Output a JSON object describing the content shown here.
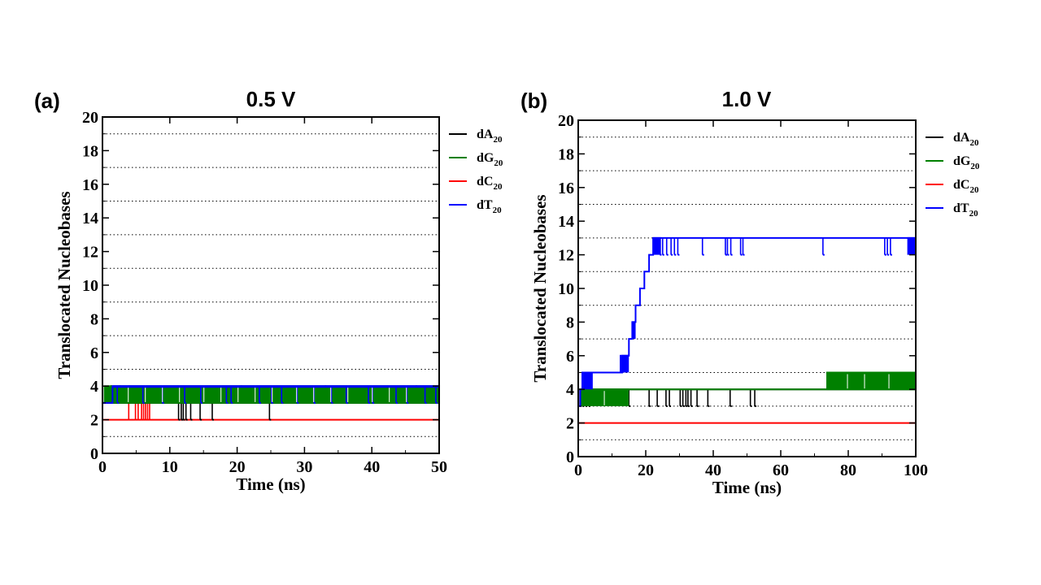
{
  "chart_data": [
    {
      "type": "line",
      "panel_label": "(a)",
      "title": "0.5 V",
      "xlabel": "Time (ns)",
      "ylabel": "Translocated Nucleobases",
      "xlim": [
        0,
        50
      ],
      "ylim": [
        0,
        20
      ],
      "xticks": [
        0,
        10,
        20,
        30,
        40,
        50
      ],
      "yticks": [
        0,
        2,
        4,
        6,
        8,
        10,
        12,
        14,
        16,
        18,
        20
      ],
      "grid": "dotted horizontal lines at odd integers",
      "legend_placement": "right, outside plot, top",
      "series": [
        {
          "name": "dA",
          "name_sub": "20",
          "color": "#000000",
          "base": 3,
          "base_until": 50,
          "steps": [],
          "spikes": [
            {
              "x": 1.2,
              "y": 4
            },
            {
              "x": 2.5,
              "y": 4
            },
            {
              "x": 3.8,
              "y": 4
            },
            {
              "x": 11.3,
              "y": 2
            },
            {
              "x": 11.7,
              "y": 2
            },
            {
              "x": 12.0,
              "y": 2
            },
            {
              "x": 12.4,
              "y": 2
            },
            {
              "x": 13.1,
              "y": 2
            },
            {
              "x": 14.5,
              "y": 2
            },
            {
              "x": 16.3,
              "y": 2
            },
            {
              "x": 20.5,
              "y": 4
            },
            {
              "x": 24.8,
              "y": 2
            },
            {
              "x": 33.0,
              "y": 4
            },
            {
              "x": 46.5,
              "y": 4
            }
          ],
          "bands": []
        },
        {
          "name": "dG",
          "name_sub": "20",
          "color": "#008000",
          "base": 3,
          "base_until": 50,
          "steps": [],
          "spikes": [],
          "bands": [
            {
              "x0": 0.2,
              "x1": 50,
              "y0": 3,
              "y1": 4
            }
          ]
        },
        {
          "name": "dC",
          "name_sub": "20",
          "color": "#ff0000",
          "base": 2,
          "base_until": 50,
          "steps": [],
          "spikes": [
            {
              "x": 3.9,
              "y": 3
            },
            {
              "x": 4.9,
              "y": 3
            },
            {
              "x": 5.3,
              "y": 3
            },
            {
              "x": 5.8,
              "y": 3
            },
            {
              "x": 6.1,
              "y": 3
            },
            {
              "x": 6.4,
              "y": 3
            },
            {
              "x": 6.7,
              "y": 3
            },
            {
              "x": 7.0,
              "y": 3
            }
          ],
          "bands": []
        },
        {
          "name": "dT",
          "name_sub": "20",
          "color": "#0000ff",
          "base": 3,
          "base_until": 50,
          "steps": [
            [
              1.5,
              4
            ]
          ],
          "spikes": [
            {
              "x": 2.2,
              "y": 3
            },
            {
              "x": 6.0,
              "y": 3
            },
            {
              "x": 8.9,
              "y": 3
            },
            {
              "x": 12.2,
              "y": 3
            },
            {
              "x": 14.6,
              "y": 3
            },
            {
              "x": 18.4,
              "y": 3
            },
            {
              "x": 19.1,
              "y": 3
            },
            {
              "x": 23.3,
              "y": 3
            },
            {
              "x": 25.1,
              "y": 3
            },
            {
              "x": 26.6,
              "y": 3
            },
            {
              "x": 28.9,
              "y": 3
            },
            {
              "x": 31.4,
              "y": 3
            },
            {
              "x": 34.0,
              "y": 3
            },
            {
              "x": 36.2,
              "y": 3
            },
            {
              "x": 39.5,
              "y": 3
            },
            {
              "x": 40.1,
              "y": 3
            },
            {
              "x": 43.6,
              "y": 3
            },
            {
              "x": 45.2,
              "y": 3
            },
            {
              "x": 47.9,
              "y": 3
            },
            {
              "x": 49.5,
              "y": 3
            }
          ],
          "bands": [
            {
              "x0": 1.5,
              "x1": 50,
              "y0": 4,
              "y1": 4
            }
          ]
        }
      ]
    },
    {
      "type": "line",
      "panel_label": "(b)",
      "title": "1.0 V",
      "xlabel": "Time (ns)",
      "ylabel": "Translocated Nucleobases",
      "xlim": [
        0,
        100
      ],
      "ylim": [
        0,
        20
      ],
      "xticks": [
        0,
        20,
        40,
        60,
        80,
        100
      ],
      "yticks": [
        0,
        2,
        4,
        6,
        8,
        10,
        12,
        14,
        16,
        18,
        20
      ],
      "grid": "dotted horizontal lines at odd integers",
      "legend_placement": "right, outside plot, top",
      "series": [
        {
          "name": "dA",
          "name_sub": "20",
          "color": "#000000",
          "base": 4,
          "base_until": 100,
          "steps": [],
          "spikes": [
            {
              "x": 0.5,
              "y": 3
            },
            {
              "x": 1.3,
              "y": 3
            },
            {
              "x": 2.2,
              "y": 3
            },
            {
              "x": 3.1,
              "y": 3
            },
            {
              "x": 15.0,
              "y": 3
            },
            {
              "x": 21.0,
              "y": 3
            },
            {
              "x": 23.4,
              "y": 3
            },
            {
              "x": 26.0,
              "y": 3
            },
            {
              "x": 27.0,
              "y": 3
            },
            {
              "x": 30.2,
              "y": 3
            },
            {
              "x": 31.0,
              "y": 3
            },
            {
              "x": 31.9,
              "y": 3
            },
            {
              "x": 32.5,
              "y": 3
            },
            {
              "x": 33.4,
              "y": 3
            },
            {
              "x": 35.2,
              "y": 3
            },
            {
              "x": 38.4,
              "y": 3
            },
            {
              "x": 45.0,
              "y": 3
            },
            {
              "x": 51.0,
              "y": 3
            },
            {
              "x": 52.3,
              "y": 3
            }
          ],
          "bands": []
        },
        {
          "name": "dG",
          "name_sub": "20",
          "color": "#008000",
          "base": 4,
          "base_until": 100,
          "steps": [],
          "spikes": [],
          "bands": [
            {
              "x0": 0.5,
              "x1": 15.0,
              "y0": 3,
              "y1": 4
            },
            {
              "x0": 73.5,
              "x1": 100,
              "y0": 4,
              "y1": 5
            }
          ]
        },
        {
          "name": "dC",
          "name_sub": "20",
          "color": "#ff0000",
          "base": 2,
          "base_until": 100,
          "steps": [],
          "spikes": [],
          "bands": []
        },
        {
          "name": "dT",
          "name_sub": "20",
          "color": "#0000ff",
          "base": 3,
          "base_until": 100,
          "steps": [
            [
              0.6,
              4
            ],
            [
              1.2,
              5
            ],
            [
              13,
              6
            ],
            [
              15,
              7
            ],
            [
              16,
              8
            ],
            [
              17,
              9
            ],
            [
              18.3,
              10
            ],
            [
              19.6,
              11
            ],
            [
              21,
              12
            ],
            [
              22.2,
              13
            ]
          ],
          "spikes": [
            {
              "x": 24.2,
              "y": 12
            },
            {
              "x": 25.0,
              "y": 12
            },
            {
              "x": 26.2,
              "y": 12
            },
            {
              "x": 27.5,
              "y": 12
            },
            {
              "x": 28.5,
              "y": 12
            },
            {
              "x": 29.5,
              "y": 12
            },
            {
              "x": 36.8,
              "y": 12
            },
            {
              "x": 43.6,
              "y": 12
            },
            {
              "x": 44.2,
              "y": 12
            },
            {
              "x": 45.2,
              "y": 12
            },
            {
              "x": 48.1,
              "y": 12
            },
            {
              "x": 48.8,
              "y": 12
            },
            {
              "x": 72.5,
              "y": 12
            },
            {
              "x": 90.8,
              "y": 12
            },
            {
              "x": 91.6,
              "y": 12
            },
            {
              "x": 92.5,
              "y": 12
            }
          ],
          "bands": [
            {
              "x0": 1.2,
              "x1": 4.3,
              "y0": 4,
              "y1": 5
            },
            {
              "x0": 12.3,
              "x1": 15.0,
              "y0": 5,
              "y1": 6
            },
            {
              "x0": 16.0,
              "x1": 17.0,
              "y0": 7,
              "y1": 8
            },
            {
              "x0": 22.2,
              "x1": 24.5,
              "y0": 12,
              "y1": 13
            },
            {
              "x0": 97.5,
              "x1": 100,
              "y0": 12,
              "y1": 13
            }
          ]
        }
      ]
    }
  ]
}
